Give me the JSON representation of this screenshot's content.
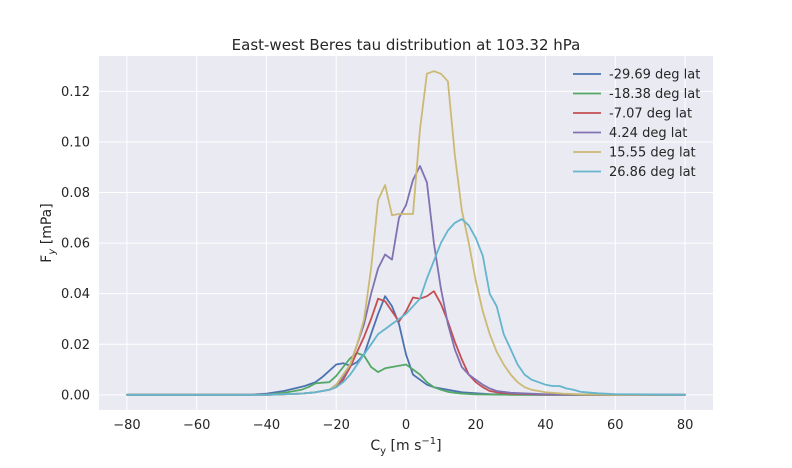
{
  "chart_data": {
    "type": "line",
    "title": "East-west Beres tau distribution at 103.32 hPa",
    "xlabel_main": "C",
    "xlabel_sub": "y",
    "xlabel_units": " [m s",
    "xlabel_sup": "−1",
    "xlabel_close": "]",
    "ylabel_main": "F",
    "ylabel_sub": "y",
    "ylabel_units": " [mPa]",
    "xlim": [
      -88,
      88
    ],
    "ylim": [
      -0.006,
      0.134
    ],
    "xticks": [
      -80,
      -60,
      -40,
      -20,
      0,
      20,
      40,
      60,
      80
    ],
    "xtick_labels": [
      "−80",
      "−60",
      "−40",
      "−20",
      "0",
      "20",
      "40",
      "60",
      "80"
    ],
    "yticks": [
      0.0,
      0.02,
      0.04,
      0.06,
      0.08,
      0.1,
      0.12
    ],
    "ytick_labels": [
      "0.00",
      "0.02",
      "0.04",
      "0.06",
      "0.08",
      "0.10",
      "0.12"
    ],
    "legend_position": "top-right",
    "series": [
      {
        "name": "-29.69 deg lat",
        "color": "#4c72b0",
        "x": [
          -80,
          -60,
          -50,
          -45,
          -40,
          -35,
          -32,
          -29,
          -26,
          -24,
          -22,
          -20,
          -18,
          -16,
          -14,
          -12,
          -10,
          -8,
          -6,
          -4,
          -2,
          0,
          2,
          4,
          6,
          8,
          10,
          12,
          14,
          16,
          18,
          20,
          24,
          30,
          40,
          60,
          80
        ],
        "y": [
          0,
          0,
          0,
          0,
          0.0005,
          0.0015,
          0.0025,
          0.0035,
          0.005,
          0.007,
          0.0095,
          0.012,
          0.0125,
          0.0115,
          0.013,
          0.016,
          0.024,
          0.032,
          0.039,
          0.035,
          0.028,
          0.016,
          0.008,
          0.006,
          0.004,
          0.003,
          0.0025,
          0.002,
          0.0015,
          0.001,
          0.0008,
          0.0006,
          0.0003,
          0.0001,
          0,
          0,
          0
        ]
      },
      {
        "name": "-18.38 deg lat",
        "color": "#55a868",
        "x": [
          -80,
          -50,
          -40,
          -34,
          -30,
          -28,
          -26,
          -24,
          -22,
          -20,
          -18,
          -16,
          -14,
          -12,
          -10,
          -8,
          -6,
          -4,
          -2,
          0,
          2,
          4,
          6,
          8,
          10,
          12,
          14,
          16,
          20,
          30,
          40,
          60,
          80
        ],
        "y": [
          0,
          0,
          0,
          0.001,
          0.002,
          0.003,
          0.0045,
          0.0048,
          0.005,
          0.0075,
          0.011,
          0.0145,
          0.0165,
          0.0155,
          0.011,
          0.009,
          0.0105,
          0.011,
          0.0115,
          0.012,
          0.01,
          0.008,
          0.005,
          0.003,
          0.002,
          0.0012,
          0.0008,
          0.0005,
          0.0002,
          0,
          0,
          0,
          0
        ]
      },
      {
        "name": "-7.07 deg lat",
        "color": "#c44e52",
        "x": [
          -80,
          -40,
          -30,
          -26,
          -22,
          -20,
          -18,
          -16,
          -14,
          -12,
          -10,
          -8,
          -6,
          -4,
          -2,
          0,
          2,
          4,
          6,
          8,
          10,
          12,
          14,
          16,
          18,
          20,
          22,
          24,
          26,
          30,
          40,
          60,
          80
        ],
        "y": [
          0,
          0,
          0.0005,
          0.001,
          0.002,
          0.003,
          0.006,
          0.011,
          0.017,
          0.023,
          0.03,
          0.038,
          0.037,
          0.033,
          0.029,
          0.033,
          0.0385,
          0.038,
          0.039,
          0.041,
          0.036,
          0.029,
          0.021,
          0.014,
          0.008,
          0.005,
          0.003,
          0.0015,
          0.001,
          0.0005,
          0.0001,
          0,
          0
        ]
      },
      {
        "name": "4.24 deg lat",
        "color": "#8172b2",
        "x": [
          -80,
          -40,
          -30,
          -26,
          -22,
          -20,
          -18,
          -16,
          -14,
          -12,
          -10,
          -8,
          -6,
          -4,
          -2,
          0,
          2,
          4,
          6,
          8,
          10,
          12,
          14,
          16,
          18,
          20,
          22,
          24,
          26,
          30,
          40,
          60,
          80
        ],
        "y": [
          0,
          0,
          0.0005,
          0.001,
          0.002,
          0.004,
          0.007,
          0.012,
          0.02,
          0.028,
          0.04,
          0.05,
          0.0555,
          0.0535,
          0.07,
          0.075,
          0.085,
          0.0905,
          0.084,
          0.06,
          0.042,
          0.028,
          0.018,
          0.011,
          0.008,
          0.006,
          0.004,
          0.0025,
          0.0015,
          0.0008,
          0.0002,
          0,
          0
        ]
      },
      {
        "name": "15.55 deg lat",
        "color": "#ccb974",
        "x": [
          -80,
          -40,
          -30,
          -26,
          -22,
          -20,
          -18,
          -16,
          -14,
          -12,
          -10,
          -8,
          -6,
          -4,
          -2,
          0,
          2,
          4,
          6,
          8,
          10,
          12,
          14,
          16,
          18,
          20,
          22,
          24,
          26,
          28,
          30,
          32,
          34,
          36,
          40,
          45,
          50,
          60,
          80
        ],
        "y": [
          0,
          0,
          0.0005,
          0.001,
          0.002,
          0.004,
          0.008,
          0.012,
          0.02,
          0.03,
          0.05,
          0.077,
          0.083,
          0.071,
          0.0715,
          0.0715,
          0.0715,
          0.105,
          0.127,
          0.128,
          0.127,
          0.124,
          0.095,
          0.073,
          0.06,
          0.045,
          0.033,
          0.024,
          0.017,
          0.012,
          0.008,
          0.005,
          0.003,
          0.002,
          0.001,
          0.0005,
          0.0002,
          0,
          0
        ]
      },
      {
        "name": "26.86 deg lat",
        "color": "#64b5cd",
        "x": [
          -80,
          -40,
          -30,
          -26,
          -22,
          -20,
          -18,
          -16,
          -14,
          -12,
          -10,
          -8,
          -6,
          -4,
          -2,
          0,
          2,
          4,
          6,
          8,
          10,
          12,
          14,
          16,
          18,
          20,
          22,
          24,
          26,
          28,
          30,
          32,
          34,
          36,
          38,
          40,
          42,
          44,
          46,
          48,
          50,
          55,
          60,
          80
        ],
        "y": [
          0,
          0,
          0.0005,
          0.001,
          0.002,
          0.003,
          0.005,
          0.008,
          0.012,
          0.016,
          0.02,
          0.024,
          0.026,
          0.028,
          0.03,
          0.032,
          0.035,
          0.038,
          0.046,
          0.053,
          0.06,
          0.065,
          0.068,
          0.0695,
          0.067,
          0.062,
          0.055,
          0.04,
          0.035,
          0.024,
          0.018,
          0.012,
          0.008,
          0.006,
          0.005,
          0.004,
          0.0035,
          0.0035,
          0.0025,
          0.002,
          0.0012,
          0.0006,
          0.0003,
          0
        ]
      }
    ]
  }
}
